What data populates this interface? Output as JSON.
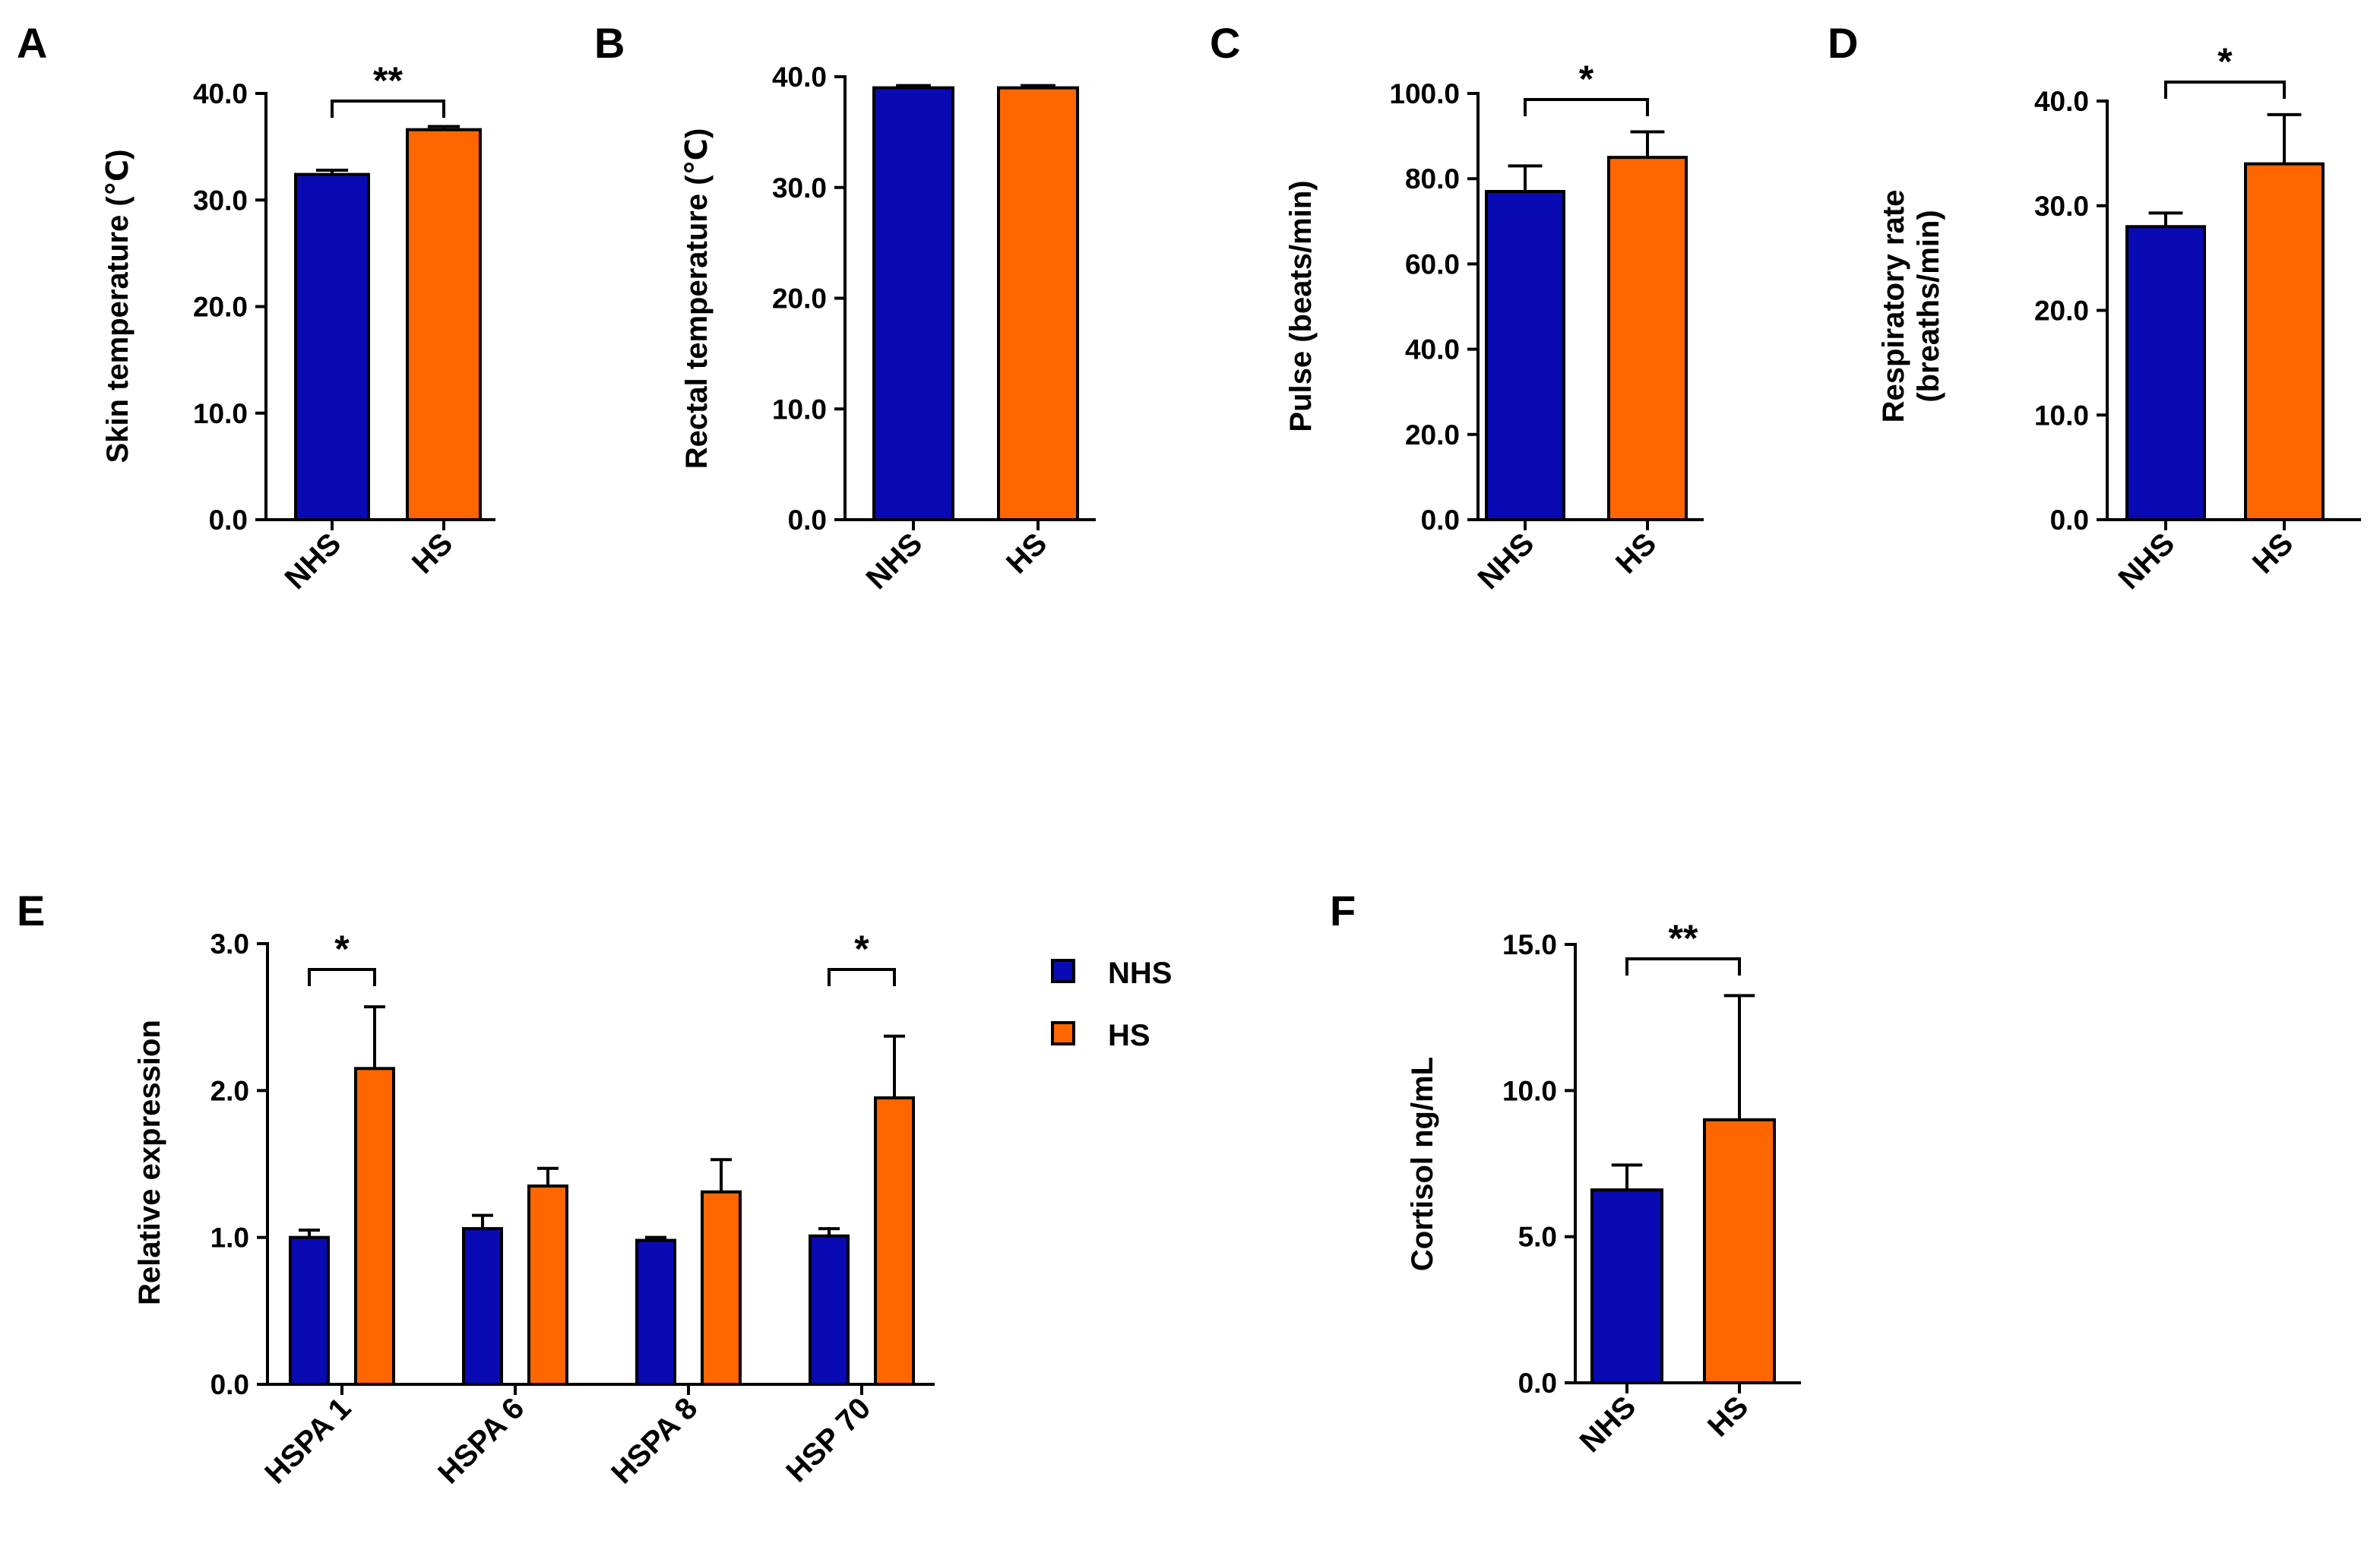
{
  "colors": {
    "NHS": "#0a0ab4",
    "HS": "#ff6600"
  },
  "legend": {
    "items": [
      {
        "label": "NHS",
        "series": "NHS"
      },
      {
        "label": "HS",
        "series": "HS"
      }
    ]
  },
  "chart_data": [
    {
      "panel": "A",
      "type": "bar",
      "ylabel": "Skin temperature (℃)",
      "ylim": [
        0,
        40
      ],
      "yticks": [
        0,
        10,
        20,
        30,
        40
      ],
      "tick_labels": [
        "0.0",
        "10.0",
        "20.0",
        "30.0",
        "40.0"
      ],
      "categories": [
        "NHS",
        "HS"
      ],
      "bars": [
        {
          "series": "NHS",
          "value": 32.4,
          "error": 0.4
        },
        {
          "series": "HS",
          "value": 36.6,
          "error": 0.3
        }
      ],
      "significance": [
        {
          "from": 0,
          "to": 1,
          "label": "**"
        }
      ]
    },
    {
      "panel": "B",
      "type": "bar",
      "ylabel": "Rectal temperature (℃)",
      "ylim": [
        0,
        40
      ],
      "yticks": [
        0,
        10,
        20,
        30,
        40
      ],
      "tick_labels": [
        "0.0",
        "10.0",
        "20.0",
        "30.0",
        "40.0"
      ],
      "categories": [
        "NHS",
        "HS"
      ],
      "bars": [
        {
          "series": "NHS",
          "value": 39.0,
          "error": 0.2
        },
        {
          "series": "HS",
          "value": 39.0,
          "error": 0.2
        }
      ],
      "significance": []
    },
    {
      "panel": "C",
      "type": "bar",
      "ylabel": "Pulse (beats/min)",
      "ylim": [
        0,
        100
      ],
      "yticks": [
        0,
        20,
        40,
        60,
        80,
        100
      ],
      "tick_labels": [
        "0.0",
        "20.0",
        "40.0",
        "60.0",
        "80.0",
        "100.0"
      ],
      "categories": [
        "NHS",
        "HS"
      ],
      "bars": [
        {
          "series": "NHS",
          "value": 77,
          "error": 6
        },
        {
          "series": "HS",
          "value": 85,
          "error": 6
        }
      ],
      "significance": [
        {
          "from": 0,
          "to": 1,
          "label": "*"
        }
      ]
    },
    {
      "panel": "D",
      "type": "bar",
      "ylabel": [
        "Respiratory rate",
        "(breaths/min)"
      ],
      "ylim": [
        0,
        40
      ],
      "yticks": [
        0,
        10,
        20,
        30,
        40
      ],
      "tick_labels": [
        "0.0",
        "10.0",
        "20.0",
        "30.0",
        "40.0"
      ],
      "categories": [
        "NHS",
        "HS"
      ],
      "bars": [
        {
          "series": "NHS",
          "value": 28,
          "error": 1.3
        },
        {
          "series": "HS",
          "value": 34,
          "error": 4.7
        }
      ],
      "significance": [
        {
          "from": 0,
          "to": 1,
          "label": "*"
        }
      ]
    },
    {
      "panel": "E",
      "type": "bar",
      "ylabel": "Relative expression",
      "ylim": [
        0,
        3
      ],
      "yticks": [
        0,
        1,
        2,
        3
      ],
      "tick_labels": [
        "0.0",
        "1.0",
        "2.0",
        "3.0"
      ],
      "categories": [
        "HSPA 1",
        "HSPA 6",
        "HSPA 8",
        "HSP 70"
      ],
      "series": [
        {
          "name": "NHS",
          "values": [
            1.0,
            1.06,
            0.98,
            1.01
          ],
          "errors": [
            0.05,
            0.09,
            0.02,
            0.05
          ]
        },
        {
          "name": "HS",
          "values": [
            2.15,
            1.35,
            1.31,
            1.95
          ],
          "errors": [
            0.42,
            0.12,
            0.22,
            0.42
          ]
        }
      ],
      "significance": [
        {
          "group": 0,
          "label": "*"
        },
        {
          "group": 3,
          "label": "*"
        }
      ]
    },
    {
      "panel": "F",
      "type": "bar",
      "ylabel": "Cortisol ng/mL",
      "ylim": [
        0,
        15
      ],
      "yticks": [
        0,
        5,
        10,
        15
      ],
      "tick_labels": [
        "0.0",
        "5.0",
        "10.0",
        "15.0"
      ],
      "categories": [
        "NHS",
        "HS"
      ],
      "bars": [
        {
          "series": "NHS",
          "value": 6.6,
          "error": 0.85
        },
        {
          "series": "HS",
          "value": 9.0,
          "error": 4.25
        }
      ],
      "significance": [
        {
          "from": 0,
          "to": 1,
          "label": "**"
        }
      ]
    }
  ]
}
